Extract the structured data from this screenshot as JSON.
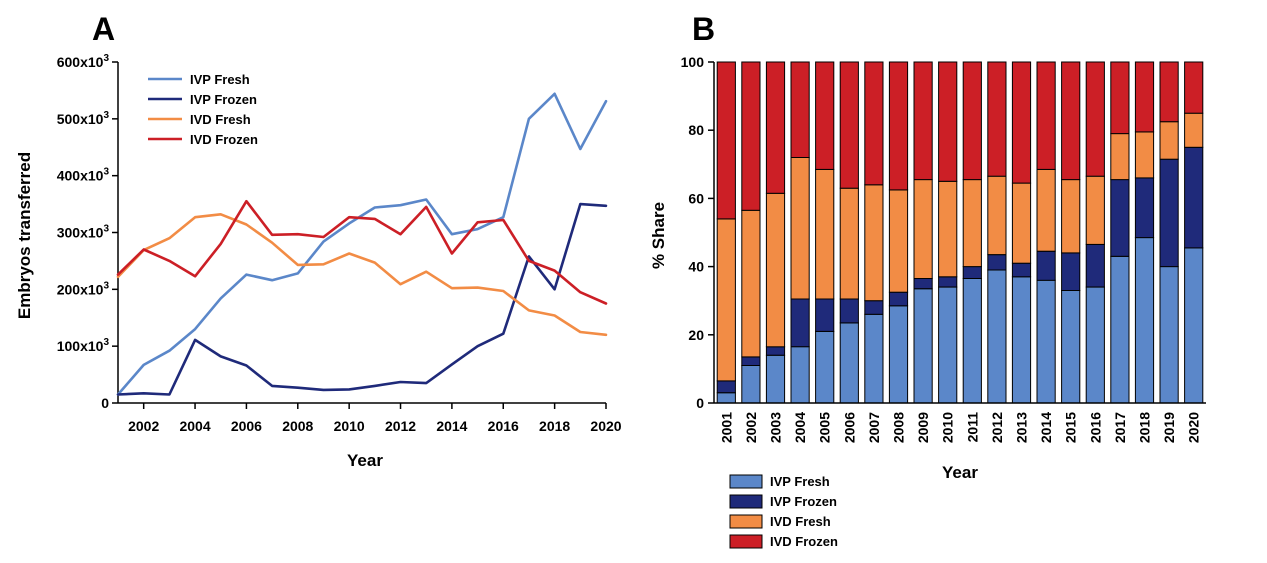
{
  "colors": {
    "ivp_fresh": "#5b87c9",
    "ivp_frozen": "#1f2a7a",
    "ivd_fresh": "#f28c45",
    "ivd_frozen": "#cc1f26"
  },
  "panels": {
    "a": {
      "letter": "A"
    },
    "b": {
      "letter": "B"
    }
  },
  "chart_data": [
    {
      "type": "line",
      "panel": "A",
      "xlabel": "Year",
      "ylabel": "Embryos transferred",
      "xlim": [
        2001,
        2020
      ],
      "ylim": [
        0,
        600000
      ],
      "x_ticks": [
        2002,
        2004,
        2006,
        2008,
        2010,
        2012,
        2014,
        2016,
        2018,
        2020
      ],
      "y_ticks": [
        {
          "value": 0,
          "base": "0",
          "exp": ""
        },
        {
          "value": 100000,
          "base": "100x10",
          "exp": "3"
        },
        {
          "value": 200000,
          "base": "200x10",
          "exp": "3"
        },
        {
          "value": 300000,
          "base": "300x10",
          "exp": "3"
        },
        {
          "value": 400000,
          "base": "400x10",
          "exp": "3"
        },
        {
          "value": 500000,
          "base": "500x10",
          "exp": "3"
        },
        {
          "value": 600000,
          "base": "600x10",
          "exp": "3"
        }
      ],
      "x": [
        2001,
        2002,
        2003,
        2004,
        2005,
        2006,
        2007,
        2008,
        2009,
        2010,
        2011,
        2012,
        2013,
        2014,
        2015,
        2016,
        2017,
        2018,
        2019,
        2020
      ],
      "series": [
        {
          "name": "IVP Fresh",
          "color_key": "ivp_fresh",
          "values": [
            15000,
            67000,
            92000,
            130000,
            184000,
            226000,
            216000,
            228000,
            284000,
            316000,
            344000,
            348000,
            358000,
            297000,
            306000,
            327000,
            500000,
            544000,
            447000,
            531000
          ]
        },
        {
          "name": "IVP Frozen",
          "color_key": "ivp_frozen",
          "values": [
            15000,
            17000,
            15000,
            111000,
            82000,
            66000,
            30000,
            27000,
            23000,
            24000,
            30000,
            37000,
            35000,
            68000,
            100000,
            122000,
            258000,
            200000,
            350000,
            347000
          ]
        },
        {
          "name": "IVD Fresh",
          "color_key": "ivd_fresh",
          "values": [
            222000,
            269000,
            290000,
            327000,
            332000,
            314000,
            282000,
            243000,
            244000,
            263000,
            247000,
            209000,
            231000,
            202000,
            203000,
            197000,
            163000,
            154000,
            125000,
            120000
          ]
        },
        {
          "name": "IVD Frozen",
          "color_key": "ivd_frozen",
          "values": [
            226000,
            270000,
            250000,
            223000,
            280000,
            355000,
            296000,
            297000,
            292000,
            327000,
            324000,
            297000,
            345000,
            263000,
            318000,
            322000,
            250000,
            233000,
            195000,
            175000
          ]
        }
      ],
      "legend": "top-left",
      "grid": false
    },
    {
      "type": "bar",
      "stacked": true,
      "panel": "B",
      "xlabel": "Year",
      "ylabel": "% Share",
      "ylim": [
        0,
        100
      ],
      "y_ticks": [
        0,
        20,
        40,
        60,
        80,
        100
      ],
      "categories": [
        "2001",
        "2002",
        "2003",
        "2004",
        "2005",
        "2006",
        "2007",
        "2008",
        "2009",
        "2010",
        "2011",
        "2012",
        "2013",
        "2014",
        "2015",
        "2016",
        "2017",
        "2018",
        "2019",
        "2020"
      ],
      "series": [
        {
          "name": "IVP Fresh",
          "color_key": "ivp_fresh",
          "values": [
            3,
            11,
            14,
            16.5,
            21,
            23.5,
            26,
            28.5,
            33.5,
            34,
            36.5,
            39,
            37,
            36,
            33,
            34,
            43,
            48.5,
            40,
            45.5
          ]
        },
        {
          "name": "IVP Frozen",
          "color_key": "ivp_frozen",
          "values": [
            3.5,
            2.5,
            2.5,
            14,
            9.5,
            7,
            4,
            4,
            3,
            3,
            3.5,
            4.5,
            4,
            8.5,
            11,
            12.5,
            22.5,
            17.5,
            31.5,
            29.5
          ]
        },
        {
          "name": "IVD Fresh",
          "color_key": "ivd_fresh",
          "values": [
            47.5,
            43,
            45,
            41.5,
            38,
            32.5,
            34,
            30,
            29,
            28,
            25.5,
            23,
            23.5,
            24,
            21.5,
            20,
            13.5,
            13.5,
            11,
            10
          ]
        },
        {
          "name": "IVD Frozen",
          "color_key": "ivd_frozen",
          "values": [
            46,
            43.5,
            38.5,
            28,
            31.5,
            37,
            36,
            37.5,
            34.5,
            35,
            34.5,
            33.5,
            35.5,
            31.5,
            34.5,
            33.5,
            21,
            20.5,
            17.5,
            15
          ]
        }
      ],
      "legend": "bottom-left",
      "grid": false
    }
  ]
}
